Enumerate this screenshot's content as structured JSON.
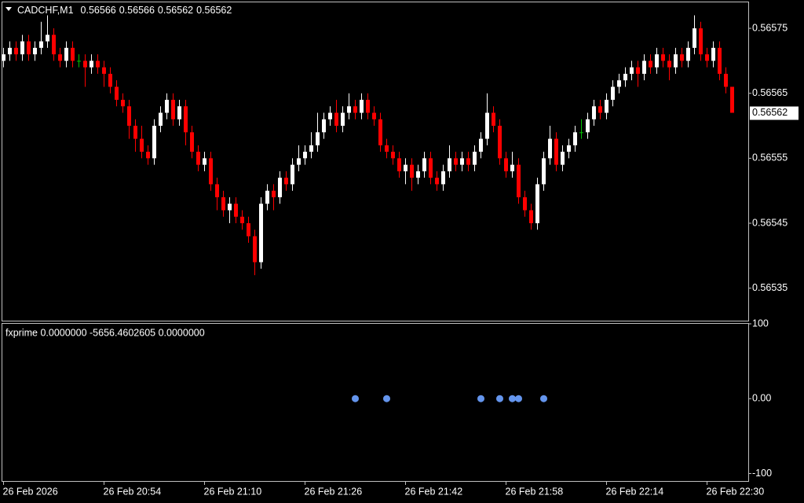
{
  "chart_data": {
    "type": "candlestick",
    "title": "CADCHF,M1",
    "ohlc_header": [
      0.56566,
      0.56566,
      0.56562,
      0.56562
    ],
    "up_color": "#ffffff",
    "down_color": "#ff0000",
    "doji_color": "#00c000",
    "ylim": [
      0.5653,
      0.56579
    ],
    "yticks": [
      0.56575,
      0.56565,
      0.56555,
      0.56545,
      0.56535
    ],
    "categories": [
      "26 Feb 2026",
      null,
      null,
      null,
      null,
      null,
      null,
      null,
      null,
      null,
      null,
      null,
      null,
      null,
      null,
      null,
      "26 Feb 20:54",
      null,
      null,
      null,
      null,
      null,
      null,
      null,
      null,
      null,
      null,
      null,
      null,
      null,
      null,
      null,
      "26 Feb 21:10",
      null,
      null,
      null,
      null,
      null,
      null,
      null,
      null,
      null,
      null,
      null,
      null,
      null,
      null,
      null,
      "26 Feb 21:26",
      null,
      null,
      null,
      null,
      null,
      null,
      null,
      null,
      null,
      null,
      null,
      null,
      null,
      null,
      null,
      "26 Feb 21:42",
      null,
      null,
      null,
      null,
      null,
      null,
      null,
      null,
      null,
      null,
      null,
      null,
      null,
      null,
      null,
      "26 Feb 21:58",
      null,
      null,
      null,
      null,
      null,
      null,
      null,
      null,
      null,
      null,
      null,
      null,
      null,
      null,
      null,
      "26 Feb 22:14",
      null,
      null,
      null,
      null,
      null,
      null,
      null,
      null,
      null,
      null,
      null,
      null,
      null,
      null,
      null,
      "26 Feb 22:30",
      null,
      null,
      null,
      null
    ],
    "open": [
      0.5657,
      0.56571,
      0.56572,
      0.56571,
      0.56573,
      0.56571,
      0.56572,
      0.56573,
      0.56574,
      0.56571,
      0.5657,
      0.56572,
      0.5657,
      0.5657,
      0.56569,
      0.5657,
      0.56569,
      0.56568,
      0.56566,
      0.56564,
      0.56563,
      0.5656,
      0.56558,
      0.56556,
      0.56555,
      0.5656,
      0.56562,
      0.56564,
      0.56561,
      0.56563,
      0.56559,
      0.56556,
      0.56554,
      0.56555,
      0.56551,
      0.56549,
      0.56547,
      0.56548,
      0.56546,
      0.56545,
      0.56543,
      0.56539,
      0.56548,
      0.5655,
      0.56549,
      0.56552,
      0.56551,
      0.56554,
      0.56555,
      0.56556,
      0.56557,
      0.56559,
      0.56561,
      0.56562,
      0.5656,
      0.56562,
      0.56563,
      0.56562,
      0.56564,
      0.56562,
      0.56561,
      0.56557,
      0.56556,
      0.56555,
      0.56553,
      0.56554,
      0.56552,
      0.56553,
      0.56555,
      0.56552,
      0.56551,
      0.56553,
      0.56555,
      0.56554,
      0.56555,
      0.56554,
      0.56556,
      0.56558,
      0.56562,
      0.5656,
      0.56555,
      0.56553,
      0.56554,
      0.56549,
      0.56547,
      0.56545,
      0.56551,
      0.56555,
      0.56558,
      0.56554,
      0.56556,
      0.56557,
      0.56559,
      0.56559,
      0.56561,
      0.56563,
      0.56562,
      0.56564,
      0.56566,
      0.56567,
      0.56568,
      0.56569,
      0.56568,
      0.5657,
      0.56569,
      0.56571,
      0.5657,
      0.56569,
      0.56571,
      0.5657,
      0.56572,
      0.56575,
      0.56571,
      0.5657,
      0.56572,
      0.56568,
      0.56566
    ],
    "high": [
      0.56572,
      0.56573,
      0.56573,
      0.56574,
      0.56574,
      0.56573,
      0.56576,
      0.56577,
      0.56575,
      0.56572,
      0.56573,
      0.56573,
      0.56571,
      0.56571,
      0.56571,
      0.56571,
      0.5657,
      0.56569,
      0.56567,
      0.56565,
      0.56564,
      0.56561,
      0.5656,
      0.56557,
      0.56561,
      0.56563,
      0.56565,
      0.56565,
      0.56564,
      0.56564,
      0.5656,
      0.56557,
      0.56556,
      0.56556,
      0.56552,
      0.5655,
      0.56549,
      0.56549,
      0.56547,
      0.56546,
      0.56544,
      0.56549,
      0.56551,
      0.56551,
      0.56553,
      0.56553,
      0.56555,
      0.56557,
      0.56557,
      0.56559,
      0.56562,
      0.56562,
      0.56563,
      0.56564,
      0.56563,
      0.56565,
      0.56564,
      0.56565,
      0.56565,
      0.56563,
      0.56562,
      0.56558,
      0.56557,
      0.56556,
      0.56555,
      0.56555,
      0.56554,
      0.56556,
      0.56556,
      0.56553,
      0.56554,
      0.56557,
      0.56556,
      0.56556,
      0.56556,
      0.56557,
      0.56559,
      0.56565,
      0.56563,
      0.56561,
      0.56556,
      0.56556,
      0.56555,
      0.5655,
      0.56548,
      0.56552,
      0.56556,
      0.5656,
      0.56559,
      0.56557,
      0.56558,
      0.5656,
      0.56561,
      0.56562,
      0.56564,
      0.56564,
      0.56565,
      0.56567,
      0.56568,
      0.56569,
      0.5657,
      0.5657,
      0.56571,
      0.56571,
      0.56572,
      0.56572,
      0.56571,
      0.56572,
      0.56572,
      0.56573,
      0.56577,
      0.56576,
      0.56572,
      0.56573,
      0.56573,
      0.56569,
      0.56566
    ],
    "low": [
      0.56569,
      0.5657,
      0.5657,
      0.5657,
      0.5657,
      0.5657,
      0.56571,
      0.56572,
      0.5657,
      0.56569,
      0.56569,
      0.56569,
      0.56569,
      0.56566,
      0.56568,
      0.56568,
      0.56566,
      0.56565,
      0.56563,
      0.56562,
      0.56558,
      0.56556,
      0.56555,
      0.56554,
      0.56554,
      0.56559,
      0.56561,
      0.5656,
      0.5656,
      0.56557,
      0.56555,
      0.56553,
      0.56553,
      0.5655,
      0.56547,
      0.56546,
      0.56545,
      0.56545,
      0.56544,
      0.56542,
      0.56537,
      0.56538,
      0.56547,
      0.56547,
      0.56548,
      0.5655,
      0.5655,
      0.56553,
      0.56554,
      0.56555,
      0.56556,
      0.56558,
      0.5656,
      0.56559,
      0.56559,
      0.56561,
      0.56561,
      0.56561,
      0.56561,
      0.5656,
      0.56556,
      0.56555,
      0.56554,
      0.56552,
      0.56551,
      0.5655,
      0.56551,
      0.56552,
      0.56551,
      0.5655,
      0.5655,
      0.56552,
      0.56553,
      0.56553,
      0.56553,
      0.56553,
      0.56555,
      0.56557,
      0.56559,
      0.56554,
      0.56552,
      0.56552,
      0.56548,
      0.56546,
      0.56544,
      0.56544,
      0.5655,
      0.56554,
      0.56553,
      0.56553,
      0.56555,
      0.56556,
      0.56558,
      0.56558,
      0.5656,
      0.56561,
      0.56561,
      0.56563,
      0.56565,
      0.56566,
      0.56567,
      0.56566,
      0.56567,
      0.56568,
      0.56568,
      0.56569,
      0.56567,
      0.56568,
      0.56569,
      0.56569,
      0.56571,
      0.5657,
      0.56569,
      0.56569,
      0.56567,
      0.56565,
      0.56562
    ],
    "close": [
      0.56571,
      0.56572,
      0.56571,
      0.56573,
      0.56571,
      0.56572,
      0.56573,
      0.56574,
      0.56571,
      0.5657,
      0.56572,
      0.5657,
      0.5657,
      0.56569,
      0.5657,
      0.56569,
      0.56568,
      0.56566,
      0.56564,
      0.56563,
      0.5656,
      0.56558,
      0.56556,
      0.56555,
      0.5656,
      0.56562,
      0.56564,
      0.56561,
      0.56563,
      0.56559,
      0.56556,
      0.56554,
      0.56555,
      0.56551,
      0.56549,
      0.56547,
      0.56548,
      0.56546,
      0.56545,
      0.56543,
      0.56539,
      0.56548,
      0.5655,
      0.56549,
      0.56552,
      0.56551,
      0.56554,
      0.56555,
      0.56556,
      0.56557,
      0.56559,
      0.56561,
      0.56562,
      0.5656,
      0.56562,
      0.56563,
      0.56562,
      0.56564,
      0.56562,
      0.56561,
      0.56557,
      0.56556,
      0.56555,
      0.56553,
      0.56554,
      0.56552,
      0.56553,
      0.56555,
      0.56552,
      0.56551,
      0.56553,
      0.56555,
      0.56554,
      0.56555,
      0.56554,
      0.56556,
      0.56558,
      0.56562,
      0.5656,
      0.56555,
      0.56553,
      0.56554,
      0.56549,
      0.56547,
      0.56545,
      0.56551,
      0.56555,
      0.56558,
      0.56554,
      0.56556,
      0.56557,
      0.56559,
      0.56559,
      0.56561,
      0.56563,
      0.56562,
      0.56564,
      0.56566,
      0.56567,
      0.56568,
      0.56569,
      0.56568,
      0.5657,
      0.56569,
      0.56571,
      0.5657,
      0.56569,
      0.56571,
      0.5657,
      0.56572,
      0.56575,
      0.56571,
      0.5657,
      0.56572,
      0.56568,
      0.56566,
      0.56562
    ],
    "indicator": {
      "label": "fxprime 0.0000000 -5656.4602605 0.0000000",
      "color": "#6495ed",
      "ylim": [
        -110,
        100
      ],
      "yticks": [
        100,
        {
          "value": 0,
          "label": "0.00"
        },
        -100
      ],
      "values": [
        null,
        null,
        null,
        null,
        null,
        null,
        null,
        null,
        null,
        null,
        null,
        null,
        null,
        null,
        null,
        null,
        null,
        null,
        null,
        null,
        null,
        null,
        null,
        null,
        null,
        null,
        null,
        null,
        null,
        null,
        null,
        null,
        null,
        null,
        null,
        null,
        null,
        null,
        null,
        null,
        null,
        null,
        null,
        null,
        null,
        null,
        null,
        null,
        null,
        null,
        null,
        null,
        null,
        null,
        null,
        null,
        0,
        null,
        null,
        null,
        null,
        0,
        null,
        null,
        null,
        null,
        null,
        null,
        null,
        null,
        null,
        null,
        null,
        null,
        null,
        null,
        0,
        null,
        null,
        0,
        null,
        0,
        0,
        null,
        null,
        null,
        0,
        null,
        null,
        null,
        null,
        null,
        null,
        null,
        null,
        null,
        null,
        null,
        null,
        null,
        null,
        null,
        null,
        null,
        null,
        null,
        null,
        null,
        null,
        null,
        null,
        null,
        null,
        null,
        null,
        null,
        null
      ]
    }
  }
}
